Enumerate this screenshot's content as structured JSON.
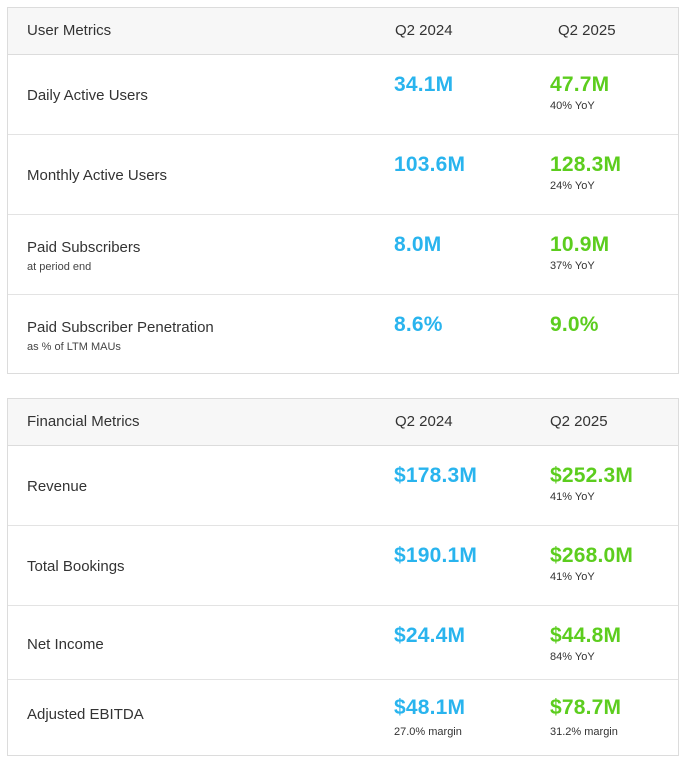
{
  "user_metrics": {
    "header": {
      "title": "User Metrics",
      "col1": "Q2 2024",
      "col2": "Q2 2025"
    },
    "rows": [
      {
        "label": "Daily Active Users",
        "sublabel": "",
        "q2_2024": "34.1M",
        "q2_2025": "47.7M",
        "note_2024": "",
        "note_2025": "40% YoY"
      },
      {
        "label": "Monthly Active Users",
        "sublabel": "",
        "q2_2024": "103.6M",
        "q2_2025": "128.3M",
        "note_2024": "",
        "note_2025": "24% YoY"
      },
      {
        "label": "Paid Subscribers",
        "sublabel": "at period end",
        "q2_2024": "8.0M",
        "q2_2025": "10.9M",
        "note_2024": "",
        "note_2025": "37% YoY"
      },
      {
        "label": "Paid Subscriber Penetration",
        "sublabel": "as % of LTM MAUs",
        "q2_2024": "8.6%",
        "q2_2025": "9.0%",
        "note_2024": "",
        "note_2025": ""
      }
    ]
  },
  "financial_metrics": {
    "header": {
      "title": "Financial Metrics",
      "col1": "Q2 2024",
      "col2": "Q2 2025"
    },
    "rows": [
      {
        "label": "Revenue",
        "q2_2024": "$178.3M",
        "q2_2025": "$252.3M",
        "note_2024": "",
        "note_2025": "41% YoY"
      },
      {
        "label": "Total Bookings",
        "q2_2024": "$190.1M",
        "q2_2025": "$268.0M",
        "note_2024": "",
        "note_2025": "41% YoY"
      },
      {
        "label": "Net Income",
        "q2_2024": "$24.4M",
        "q2_2025": "$44.8M",
        "note_2024": "",
        "note_2025": "84% YoY"
      },
      {
        "label": "Adjusted EBITDA",
        "q2_2024": "$48.1M",
        "q2_2025": "$78.7M",
        "note_2024": "27.0% margin",
        "note_2025": "31.2% margin"
      }
    ]
  },
  "colors": {
    "q2_2024_value": "#29b4ee",
    "q2_2025_value": "#5ccd1e"
  }
}
